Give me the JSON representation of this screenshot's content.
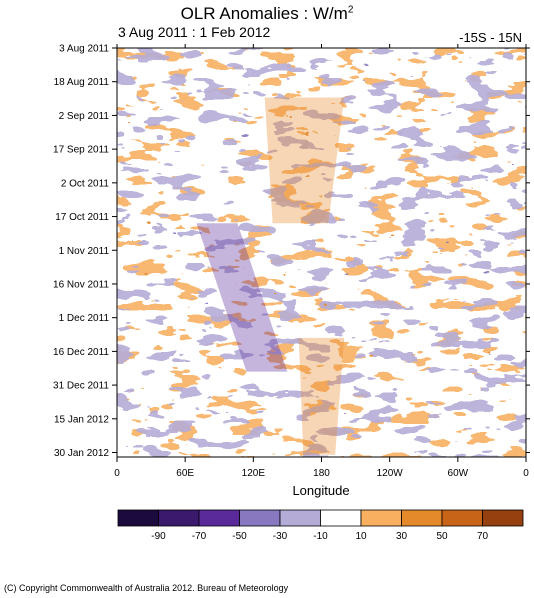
{
  "title": "OLR Anomalies : W/m",
  "title_superscript": "2",
  "date_range": "3 Aug 2011 : 1 Feb 2012",
  "latitude_band": "-15S - 15N",
  "copyright": "(C) Copyright Commonwealth of Australia 2012. Bureau of Meteorology",
  "chart_data": {
    "type": "heatmap",
    "title": "OLR Anomalies : W/m2",
    "subtitle_left": "3 Aug 2011 : 1 Feb 2012",
    "subtitle_right": "-15S - 15N",
    "xlabel": "Longitude",
    "ylabel": "",
    "x_tick_labels": [
      "0",
      "60E",
      "120E",
      "180",
      "120W",
      "60W",
      "0"
    ],
    "x_range_degrees_east": [
      0,
      360
    ],
    "x_tick_values_degrees_east": [
      0,
      60,
      120,
      180,
      240,
      300,
      360
    ],
    "y_tick_labels": [
      "3 Aug 2011",
      "18 Aug 2011",
      "2 Sep 2011",
      "17 Sep 2011",
      "2 Oct 2011",
      "17 Oct 2011",
      "1 Nov 2011",
      "16 Nov 2011",
      "1 Dec 2011",
      "16 Dec 2011",
      "31 Dec 2011",
      "15 Jan 2012",
      "30 Jan 2012"
    ],
    "y_range": [
      "2011-08-03",
      "2012-02-01"
    ],
    "y_tick_dates": [
      "2011-08-03",
      "2011-08-18",
      "2011-09-02",
      "2011-09-17",
      "2011-10-02",
      "2011-10-17",
      "2011-11-01",
      "2011-11-16",
      "2011-12-01",
      "2011-12-16",
      "2011-12-31",
      "2012-01-15",
      "2012-01-30"
    ],
    "y_direction": "time increases downward",
    "colorbar": {
      "units": "W/m2",
      "tick_labels": [
        "-90",
        "-70",
        "-50",
        "-30",
        "-10",
        "10",
        "30",
        "50",
        "70"
      ],
      "bin_colors": [
        "#1a0a3d",
        "#3b1a6e",
        "#5a2a9a",
        "#8878c0",
        "#b4acd6",
        "#ffffff",
        "#f8b060",
        "#e58a2a",
        "#c86418",
        "#964010"
      ]
    },
    "features": [
      {
        "description": "eastward-propagating negative anomaly",
        "lon_start": 70,
        "lon_end": 150,
        "date_start": "2011-10-20",
        "date_end": "2011-12-25",
        "min_value": -90
      },
      {
        "description": "positive anomaly band",
        "lon_start": 130,
        "lon_end": 200,
        "date_start": "2011-08-25",
        "date_end": "2011-10-20",
        "max_value": 50
      },
      {
        "description": "positive anomaly band",
        "lon_start": 160,
        "lon_end": 200,
        "date_start": "2011-12-10",
        "date_end": "2012-01-31",
        "max_value": 50
      }
    ]
  }
}
